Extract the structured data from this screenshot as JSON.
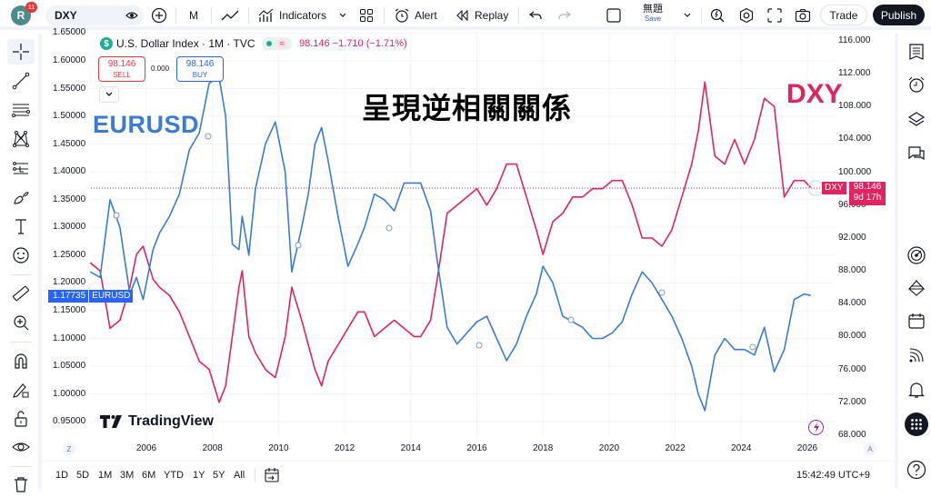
{
  "topbar": {
    "avatar_letter": "R",
    "notification_count": "11",
    "symbol": "DXY",
    "interval": "M",
    "indicators_label": "Indicators",
    "alert_label": "Alert",
    "replay_label": "Replay",
    "layout_name": "無題",
    "save_label": "Save",
    "trade_label": "Trade",
    "publish_label": "Publish"
  },
  "legend": {
    "title": "U.S. Dollar Index · 1M · TVC",
    "logo_glyph": "$",
    "approx_glyph": "≈",
    "values": "98.146 −1.710 (−1.71%)",
    "sell_price": "98.146",
    "sell_label": "SELL",
    "spread": "0.000",
    "buy_price": "98.146",
    "buy_label": "BUY"
  },
  "annotations": {
    "eurusd": "EURUSD",
    "dxy": "DXY",
    "center": "呈現逆相關關係"
  },
  "price_tags": {
    "left_value": "1.17735",
    "left_name": "EURUSD",
    "right_name": "DXY",
    "right_value": "98.146",
    "right_countdown": "9d 17h"
  },
  "branding": {
    "logo_mark": "17",
    "logo_text": "TradingView"
  },
  "bottom": {
    "ranges": [
      "1D",
      "5D",
      "1M",
      "3M",
      "6M",
      "YTD",
      "1Y",
      "5Y",
      "All"
    ],
    "clock": "15:42:49 UTC+9",
    "z_label": "Z",
    "a_label": "A"
  },
  "colors": {
    "eurusd": "#3a7bd5",
    "dxy": "#e0245e",
    "accent": "#2962ff"
  },
  "chart_data": {
    "type": "line",
    "title": "U.S. Dollar Index · 1M · TVC vs EURUSD",
    "annotation": "呈現逆相關關係",
    "xlabel": "",
    "x_ticks": [
      "2006",
      "2008",
      "2010",
      "2012",
      "2014",
      "2016",
      "2018",
      "2020",
      "2022",
      "2024",
      "2026"
    ],
    "left_axis": {
      "label": "EURUSD",
      "ticks": [
        "1.65000",
        "1.60000",
        "1.55000",
        "1.50000",
        "1.45000",
        "1.40000",
        "1.35000",
        "1.30000",
        "1.25000",
        "1.20000",
        "1.15000",
        "1.10000",
        "1.05000",
        "1.00000",
        "0.95000"
      ],
      "ylim": [
        0.93,
        1.65
      ]
    },
    "right_axis": {
      "label": "DXY",
      "ticks": [
        "116.000",
        "112.000",
        "108.000",
        "104.000",
        "100.000",
        "96.000",
        "92.000",
        "88.000",
        "84.000",
        "80.000",
        "76.000",
        "72.000",
        "68.000"
      ],
      "ylim": [
        67,
        116
      ]
    },
    "grid": true,
    "legend_position": "top-left",
    "series": [
      {
        "name": "EURUSD",
        "axis": "left",
        "x": [
          2004.3,
          2004.6,
          2004.9,
          2005.2,
          2005.5,
          2005.7,
          2005.9,
          2006.2,
          2006.4,
          2006.7,
          2007.0,
          2007.3,
          2007.6,
          2007.9,
          2008.2,
          2008.4,
          2008.6,
          2008.8,
          2008.9,
          2009.1,
          2009.3,
          2009.6,
          2009.9,
          2010.2,
          2010.4,
          2010.7,
          2010.9,
          2011.1,
          2011.3,
          2011.5,
          2011.8,
          2012.1,
          2012.4,
          2012.6,
          2012.9,
          2013.2,
          2013.5,
          2013.8,
          2014.1,
          2014.3,
          2014.6,
          2014.8,
          2015.1,
          2015.4,
          2015.7,
          2016.0,
          2016.3,
          2016.6,
          2016.9,
          2017.2,
          2017.5,
          2017.8,
          2018.0,
          2018.3,
          2018.6,
          2018.9,
          2019.2,
          2019.5,
          2019.8,
          2020.1,
          2020.4,
          2020.7,
          2021.0,
          2021.3,
          2021.6,
          2021.9,
          2022.2,
          2022.5,
          2022.7,
          2022.9,
          2023.2,
          2023.5,
          2023.8,
          2024.1,
          2024.4,
          2024.7,
          2025.0,
          2025.3,
          2025.6,
          2025.9,
          2026.1
        ],
        "values": [
          1.22,
          1.21,
          1.35,
          1.3,
          1.18,
          1.21,
          1.17,
          1.26,
          1.29,
          1.32,
          1.36,
          1.44,
          1.47,
          1.56,
          1.57,
          1.5,
          1.27,
          1.26,
          1.32,
          1.25,
          1.37,
          1.45,
          1.49,
          1.4,
          1.22,
          1.3,
          1.36,
          1.45,
          1.48,
          1.42,
          1.32,
          1.23,
          1.27,
          1.3,
          1.36,
          1.35,
          1.33,
          1.38,
          1.38,
          1.38,
          1.33,
          1.24,
          1.12,
          1.09,
          1.11,
          1.13,
          1.14,
          1.1,
          1.06,
          1.09,
          1.14,
          1.18,
          1.23,
          1.2,
          1.14,
          1.13,
          1.12,
          1.1,
          1.1,
          1.11,
          1.13,
          1.18,
          1.22,
          1.2,
          1.17,
          1.14,
          1.1,
          1.05,
          1.0,
          0.97,
          1.07,
          1.1,
          1.08,
          1.08,
          1.07,
          1.12,
          1.04,
          1.08,
          1.17,
          1.18,
          1.17735
        ]
      },
      {
        "name": "DXY",
        "axis": "right",
        "x": [
          2004.3,
          2004.6,
          2004.9,
          2005.2,
          2005.5,
          2005.7,
          2005.9,
          2006.2,
          2006.4,
          2006.7,
          2007.0,
          2007.3,
          2007.6,
          2007.9,
          2008.2,
          2008.4,
          2008.6,
          2008.8,
          2008.9,
          2009.1,
          2009.3,
          2009.6,
          2009.9,
          2010.2,
          2010.4,
          2010.7,
          2010.9,
          2011.1,
          2011.3,
          2011.5,
          2011.8,
          2012.1,
          2012.4,
          2012.6,
          2012.9,
          2013.2,
          2013.5,
          2013.8,
          2014.1,
          2014.3,
          2014.6,
          2014.8,
          2015.1,
          2015.4,
          2015.7,
          2016.0,
          2016.3,
          2016.6,
          2016.9,
          2017.2,
          2017.5,
          2017.8,
          2018.0,
          2018.3,
          2018.6,
          2018.9,
          2019.2,
          2019.5,
          2019.8,
          2020.1,
          2020.4,
          2020.7,
          2021.0,
          2021.3,
          2021.6,
          2021.9,
          2022.2,
          2022.5,
          2022.7,
          2022.9,
          2023.2,
          2023.5,
          2023.8,
          2024.1,
          2024.4,
          2024.7,
          2025.0,
          2025.3,
          2025.6,
          2025.9,
          2026.1
        ],
        "values": [
          89,
          88,
          81,
          82,
          86,
          90,
          91,
          87,
          86,
          85,
          83,
          80,
          77,
          76,
          72,
          74,
          80,
          86,
          88,
          80,
          78,
          76,
          75,
          80,
          86,
          82,
          79,
          76,
          74,
          77,
          79,
          81,
          83,
          83,
          80,
          81,
          82,
          81,
          80,
          80,
          82,
          87,
          95,
          96,
          97,
          98,
          96,
          98,
          101,
          101,
          97,
          93,
          90,
          94,
          95,
          97,
          97,
          98,
          98,
          99,
          99,
          96,
          92,
          92,
          91,
          93,
          97,
          101,
          105,
          111,
          102,
          101,
          104,
          101,
          104,
          109,
          108,
          97,
          99,
          99,
          98.146
        ]
      }
    ],
    "last_values": {
      "EURUSD": 1.17735,
      "DXY": 98.146,
      "DXY_change": -1.71,
      "DXY_change_pct": -1.71
    }
  }
}
